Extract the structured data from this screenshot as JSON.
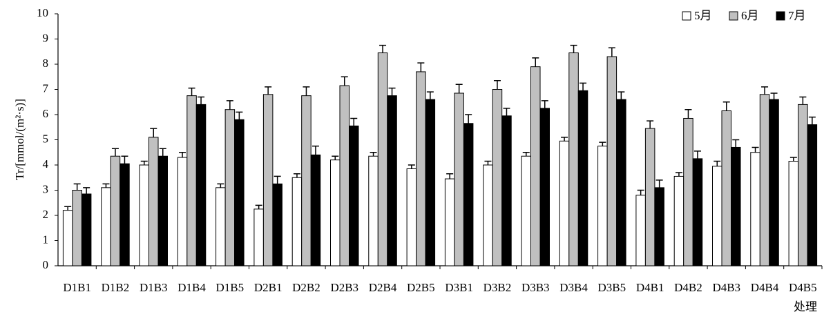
{
  "chart_data": {
    "type": "bar",
    "y_label": "Tr/[mmol/(m²·s)]",
    "x_label": "处理",
    "categories": [
      "D1B1",
      "D1B2",
      "D1B3",
      "D1B4",
      "D1B5",
      "D2B1",
      "D2B2",
      "D2B3",
      "D2B4",
      "D2B5",
      "D3B1",
      "D3B2",
      "D3B3",
      "D3B4",
      "D3B5",
      "D4B1",
      "D4B2",
      "D4B3",
      "D4B4",
      "D4B5"
    ],
    "series": [
      {
        "name": "5月",
        "color": "#ffffff",
        "values": [
          2.2,
          3.1,
          4.0,
          4.3,
          3.1,
          2.25,
          3.5,
          4.2,
          4.35,
          3.85,
          3.45,
          4.0,
          4.35,
          4.95,
          4.75,
          2.8,
          3.55,
          3.95,
          4.5,
          4.15
        ],
        "errors": [
          0.15,
          0.15,
          0.15,
          0.2,
          0.15,
          0.15,
          0.15,
          0.15,
          0.15,
          0.15,
          0.2,
          0.15,
          0.15,
          0.15,
          0.15,
          0.2,
          0.15,
          0.2,
          0.2,
          0.15
        ]
      },
      {
        "name": "6月",
        "color": "#c0c0c0",
        "values": [
          3.0,
          4.35,
          5.1,
          6.75,
          6.2,
          6.8,
          6.75,
          7.15,
          8.45,
          7.7,
          6.85,
          7.0,
          7.9,
          8.45,
          8.3,
          5.45,
          5.85,
          6.15,
          6.8,
          6.4
        ],
        "errors": [
          0.25,
          0.3,
          0.35,
          0.3,
          0.35,
          0.3,
          0.35,
          0.35,
          0.3,
          0.35,
          0.35,
          0.35,
          0.35,
          0.3,
          0.35,
          0.3,
          0.35,
          0.35,
          0.3,
          0.3
        ]
      },
      {
        "name": "7月",
        "color": "#000000",
        "values": [
          2.85,
          4.05,
          4.35,
          6.4,
          5.8,
          3.25,
          4.4,
          5.55,
          6.75,
          6.6,
          5.65,
          5.95,
          6.25,
          6.95,
          6.6,
          3.1,
          4.25,
          4.7,
          6.6,
          5.6
        ],
        "errors": [
          0.25,
          0.3,
          0.3,
          0.3,
          0.3,
          0.3,
          0.35,
          0.3,
          0.3,
          0.3,
          0.35,
          0.3,
          0.3,
          0.3,
          0.3,
          0.3,
          0.3,
          0.3,
          0.25,
          0.3
        ]
      }
    ],
    "ylim": [
      0,
      10
    ],
    "yticks": [
      0,
      1,
      2,
      3,
      4,
      5,
      6,
      7,
      8,
      9,
      10
    ],
    "legend": "top-right"
  }
}
